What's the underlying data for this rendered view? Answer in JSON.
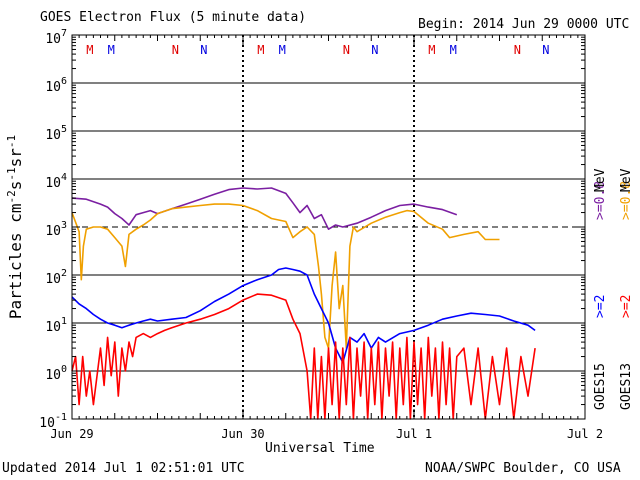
{
  "chart_data": {
    "type": "line",
    "title": "GOES Electron Flux (5 minute data)",
    "begin": "Begin: 2014 Jun 29 0000 UTC",
    "xlabel": "Universal Time",
    "ylabel_main": "Particles cm",
    "ylabel_sup1": "-2",
    "ylabel_mid1": "s",
    "ylabel_sup2": "-1",
    "ylabel_mid2": "sr",
    "ylabel_sup3": "-1",
    "yscale": "log",
    "ylim": [
      0.1,
      10000000
    ],
    "xlim_hours": [
      0,
      72
    ],
    "x_ticks": [
      {
        "label": "Jun 29",
        "hour": 0
      },
      {
        "label": "Jun 30",
        "hour": 24
      },
      {
        "label": "Jul 1",
        "hour": 48
      },
      {
        "label": "Jul 2",
        "hour": 72
      }
    ],
    "y_ticks": [
      {
        "base": "10",
        "exp": "7",
        "value": 10000000
      },
      {
        "base": "10",
        "exp": "6",
        "value": 1000000
      },
      {
        "base": "10",
        "exp": "5",
        "value": 100000
      },
      {
        "base": "10",
        "exp": "4",
        "value": 10000
      },
      {
        "base": "10",
        "exp": "3",
        "value": 1000
      },
      {
        "base": "10",
        "exp": "2",
        "value": 100
      },
      {
        "base": "10",
        "exp": "1",
        "value": 10
      },
      {
        "base": "10",
        "exp": "0",
        "value": 1
      },
      {
        "base": "10",
        "exp": "-1",
        "value": 0.1
      }
    ],
    "threshold": 1000,
    "mn_markers": [
      {
        "label": "M",
        "hour": 2.5,
        "color": "#e00000"
      },
      {
        "label": "M",
        "hour": 5.5,
        "color": "#0000e0"
      },
      {
        "label": "N",
        "hour": 14.5,
        "color": "#e00000"
      },
      {
        "label": "N",
        "hour": 18.5,
        "color": "#0000e0"
      },
      {
        "label": "M",
        "hour": 26.5,
        "color": "#e00000"
      },
      {
        "label": "M",
        "hour": 29.5,
        "color": "#0000e0"
      },
      {
        "label": "N",
        "hour": 38.5,
        "color": "#e00000"
      },
      {
        "label": "N",
        "hour": 42.5,
        "color": "#0000e0"
      },
      {
        "label": "M",
        "hour": 50.5,
        "color": "#e00000"
      },
      {
        "label": "M",
        "hour": 53.5,
        "color": "#0000e0"
      },
      {
        "label": "N",
        "hour": 62.5,
        "color": "#e00000"
      },
      {
        "label": "N",
        "hour": 66.5,
        "color": "#0000e0"
      }
    ],
    "series": [
      {
        "name": "GOES15 >=0.8 MeV",
        "color": "#7b1fa2",
        "points": [
          [
            0,
            4000
          ],
          [
            2,
            3800
          ],
          [
            4,
            3000
          ],
          [
            5,
            2600
          ],
          [
            6,
            1900
          ],
          [
            7,
            1500
          ],
          [
            8,
            1100
          ],
          [
            9,
            1800
          ],
          [
            10,
            2000
          ],
          [
            11,
            2200
          ],
          [
            12,
            1900
          ],
          [
            14,
            2400
          ],
          [
            16,
            3000
          ],
          [
            18,
            3800
          ],
          [
            20,
            4800
          ],
          [
            22,
            6000
          ],
          [
            24,
            6500
          ],
          [
            26,
            6200
          ],
          [
            28,
            6500
          ],
          [
            30,
            5000
          ],
          [
            31,
            3200
          ],
          [
            32,
            2000
          ],
          [
            33,
            2800
          ],
          [
            34,
            1500
          ],
          [
            35,
            1800
          ],
          [
            36,
            900
          ],
          [
            37,
            1100
          ],
          [
            38,
            1000
          ],
          [
            40,
            1200
          ],
          [
            42,
            1600
          ],
          [
            44,
            2200
          ],
          [
            46,
            2800
          ],
          [
            48,
            3000
          ],
          [
            50,
            2600
          ],
          [
            52,
            2300
          ],
          [
            54,
            1800
          ]
        ]
      },
      {
        "name": "GOES13 >=0.8 MeV",
        "color": "#f0a000",
        "points": [
          [
            0,
            2000
          ],
          [
            1,
            800
          ],
          [
            1.3,
            80
          ],
          [
            1.6,
            400
          ],
          [
            2,
            900
          ],
          [
            3,
            1000
          ],
          [
            4,
            1000
          ],
          [
            5,
            900
          ],
          [
            6,
            600
          ],
          [
            7,
            400
          ],
          [
            7.5,
            150
          ],
          [
            8,
            700
          ],
          [
            9,
            900
          ],
          [
            10,
            1100
          ],
          [
            11,
            1400
          ],
          [
            12,
            1900
          ],
          [
            14,
            2400
          ],
          [
            16,
            2600
          ],
          [
            18,
            2800
          ],
          [
            20,
            3000
          ],
          [
            22,
            3000
          ],
          [
            24,
            2800
          ],
          [
            26,
            2200
          ],
          [
            28,
            1500
          ],
          [
            30,
            1300
          ],
          [
            31,
            600
          ],
          [
            32,
            800
          ],
          [
            33,
            1000
          ],
          [
            34,
            700
          ],
          [
            34.6,
            150
          ],
          [
            35,
            40
          ],
          [
            35.5,
            5
          ],
          [
            36,
            3
          ],
          [
            36.5,
            60
          ],
          [
            37,
            300
          ],
          [
            37.5,
            20
          ],
          [
            38,
            60
          ],
          [
            38.5,
            3
          ],
          [
            39,
            400
          ],
          [
            39.5,
            1000
          ],
          [
            40,
            800
          ],
          [
            42,
            1200
          ],
          [
            44,
            1600
          ],
          [
            46,
            2000
          ],
          [
            47,
            2200
          ],
          [
            48,
            2100
          ],
          [
            50,
            1200
          ],
          [
            52,
            900
          ],
          [
            53,
            600
          ],
          [
            55,
            700
          ],
          [
            57,
            800
          ],
          [
            58,
            550
          ],
          [
            60,
            550
          ]
        ]
      },
      {
        "name": "GOES15 >=2 MeV",
        "color": "#0000ff",
        "points": [
          [
            0,
            35
          ],
          [
            1,
            25
          ],
          [
            2,
            20
          ],
          [
            3,
            15
          ],
          [
            4,
            12
          ],
          [
            5,
            10
          ],
          [
            6,
            9
          ],
          [
            7,
            8
          ],
          [
            8,
            9
          ],
          [
            9,
            10
          ],
          [
            10,
            11
          ],
          [
            11,
            12
          ],
          [
            12,
            11
          ],
          [
            14,
            12
          ],
          [
            16,
            13
          ],
          [
            18,
            18
          ],
          [
            20,
            28
          ],
          [
            22,
            40
          ],
          [
            24,
            60
          ],
          [
            26,
            80
          ],
          [
            28,
            100
          ],
          [
            29,
            130
          ],
          [
            30,
            140
          ],
          [
            31,
            130
          ],
          [
            32,
            120
          ],
          [
            33,
            100
          ],
          [
            34,
            40
          ],
          [
            35,
            20
          ],
          [
            36,
            10
          ],
          [
            37,
            3
          ],
          [
            38,
            1.5
          ],
          [
            39,
            5
          ],
          [
            40,
            4
          ],
          [
            41,
            6
          ],
          [
            42,
            3
          ],
          [
            43,
            5
          ],
          [
            44,
            4
          ],
          [
            46,
            6
          ],
          [
            48,
            7
          ],
          [
            50,
            9
          ],
          [
            52,
            12
          ],
          [
            54,
            14
          ],
          [
            56,
            16
          ],
          [
            58,
            15
          ],
          [
            60,
            14
          ],
          [
            62,
            11
          ],
          [
            64,
            9
          ],
          [
            65,
            7
          ]
        ]
      },
      {
        "name": "GOES13 >=2 MeV",
        "color": "#ff0000",
        "points": [
          [
            0,
            1
          ],
          [
            0.5,
            2
          ],
          [
            1,
            0.2
          ],
          [
            1.5,
            2
          ],
          [
            2,
            0.3
          ],
          [
            2.5,
            1
          ],
          [
            3,
            0.2
          ],
          [
            4,
            3
          ],
          [
            4.5,
            0.5
          ],
          [
            5,
            5
          ],
          [
            5.5,
            0.8
          ],
          [
            6,
            4
          ],
          [
            6.5,
            0.3
          ],
          [
            7,
            3
          ],
          [
            7.5,
            1
          ],
          [
            8,
            4
          ],
          [
            8.5,
            2
          ],
          [
            9,
            5
          ],
          [
            10,
            6
          ],
          [
            11,
            5
          ],
          [
            12,
            6
          ],
          [
            13,
            7
          ],
          [
            14,
            8
          ],
          [
            16,
            10
          ],
          [
            18,
            12
          ],
          [
            20,
            15
          ],
          [
            22,
            20
          ],
          [
            24,
            30
          ],
          [
            26,
            40
          ],
          [
            28,
            38
          ],
          [
            30,
            30
          ],
          [
            31,
            12
          ],
          [
            32,
            6
          ],
          [
            33,
            1
          ],
          [
            33.5,
            0.1
          ],
          [
            34,
            3
          ],
          [
            34.5,
            0.1
          ],
          [
            35,
            2
          ],
          [
            35.5,
            0.1
          ],
          [
            36,
            3
          ],
          [
            36.5,
            0.2
          ],
          [
            37,
            4
          ],
          [
            37.5,
            0.1
          ],
          [
            38,
            3
          ],
          [
            38.5,
            0.2
          ],
          [
            39,
            5
          ],
          [
            39.5,
            0.1
          ],
          [
            40,
            3
          ],
          [
            40.5,
            0.3
          ],
          [
            41,
            4
          ],
          [
            41.5,
            0.1
          ],
          [
            42,
            3
          ],
          [
            42.5,
            0.2
          ],
          [
            43,
            4
          ],
          [
            43.5,
            0.1
          ],
          [
            44,
            3
          ],
          [
            44.5,
            0.3
          ],
          [
            45,
            4
          ],
          [
            45.5,
            0.1
          ],
          [
            46,
            3
          ],
          [
            46.5,
            0.2
          ],
          [
            47,
            5
          ],
          [
            47.5,
            0.1
          ],
          [
            48,
            4
          ],
          [
            48.5,
            0.2
          ],
          [
            49,
            3
          ],
          [
            49.5,
            0.1
          ],
          [
            50,
            5
          ],
          [
            50.5,
            0.3
          ],
          [
            51,
            3
          ],
          [
            51.5,
            0.1
          ],
          [
            52,
            4
          ],
          [
            52.5,
            0.2
          ],
          [
            53,
            3
          ],
          [
            53.5,
            0.1
          ],
          [
            54,
            2
          ],
          [
            55,
            3
          ],
          [
            56,
            0.2
          ],
          [
            57,
            3
          ],
          [
            58,
            0.1
          ],
          [
            59,
            2
          ],
          [
            60,
            0.2
          ],
          [
            61,
            3
          ],
          [
            62,
            0.1
          ],
          [
            63,
            2
          ],
          [
            64,
            0.3
          ],
          [
            65,
            3
          ]
        ]
      }
    ],
    "right_legend": [
      {
        "sat": "GOES15",
        "label": ">=2",
        "unit": "",
        "color": "#0000ff"
      },
      {
        "sat": "GOES13",
        "label": ">=2",
        "unit": "",
        "color": "#ff0000"
      },
      {
        "sat": "",
        "label": ">=0.8",
        "unit": "MeV",
        "color": "#7b1fa2"
      },
      {
        "sat": "",
        "label": ">=0.8",
        "unit": "MeV",
        "color": "#f0a000"
      }
    ]
  },
  "footer": {
    "updated": "Updated 2014 Jul  1 02:51:01 UTC",
    "credit": "NOAA/SWPC Boulder, CO USA"
  }
}
